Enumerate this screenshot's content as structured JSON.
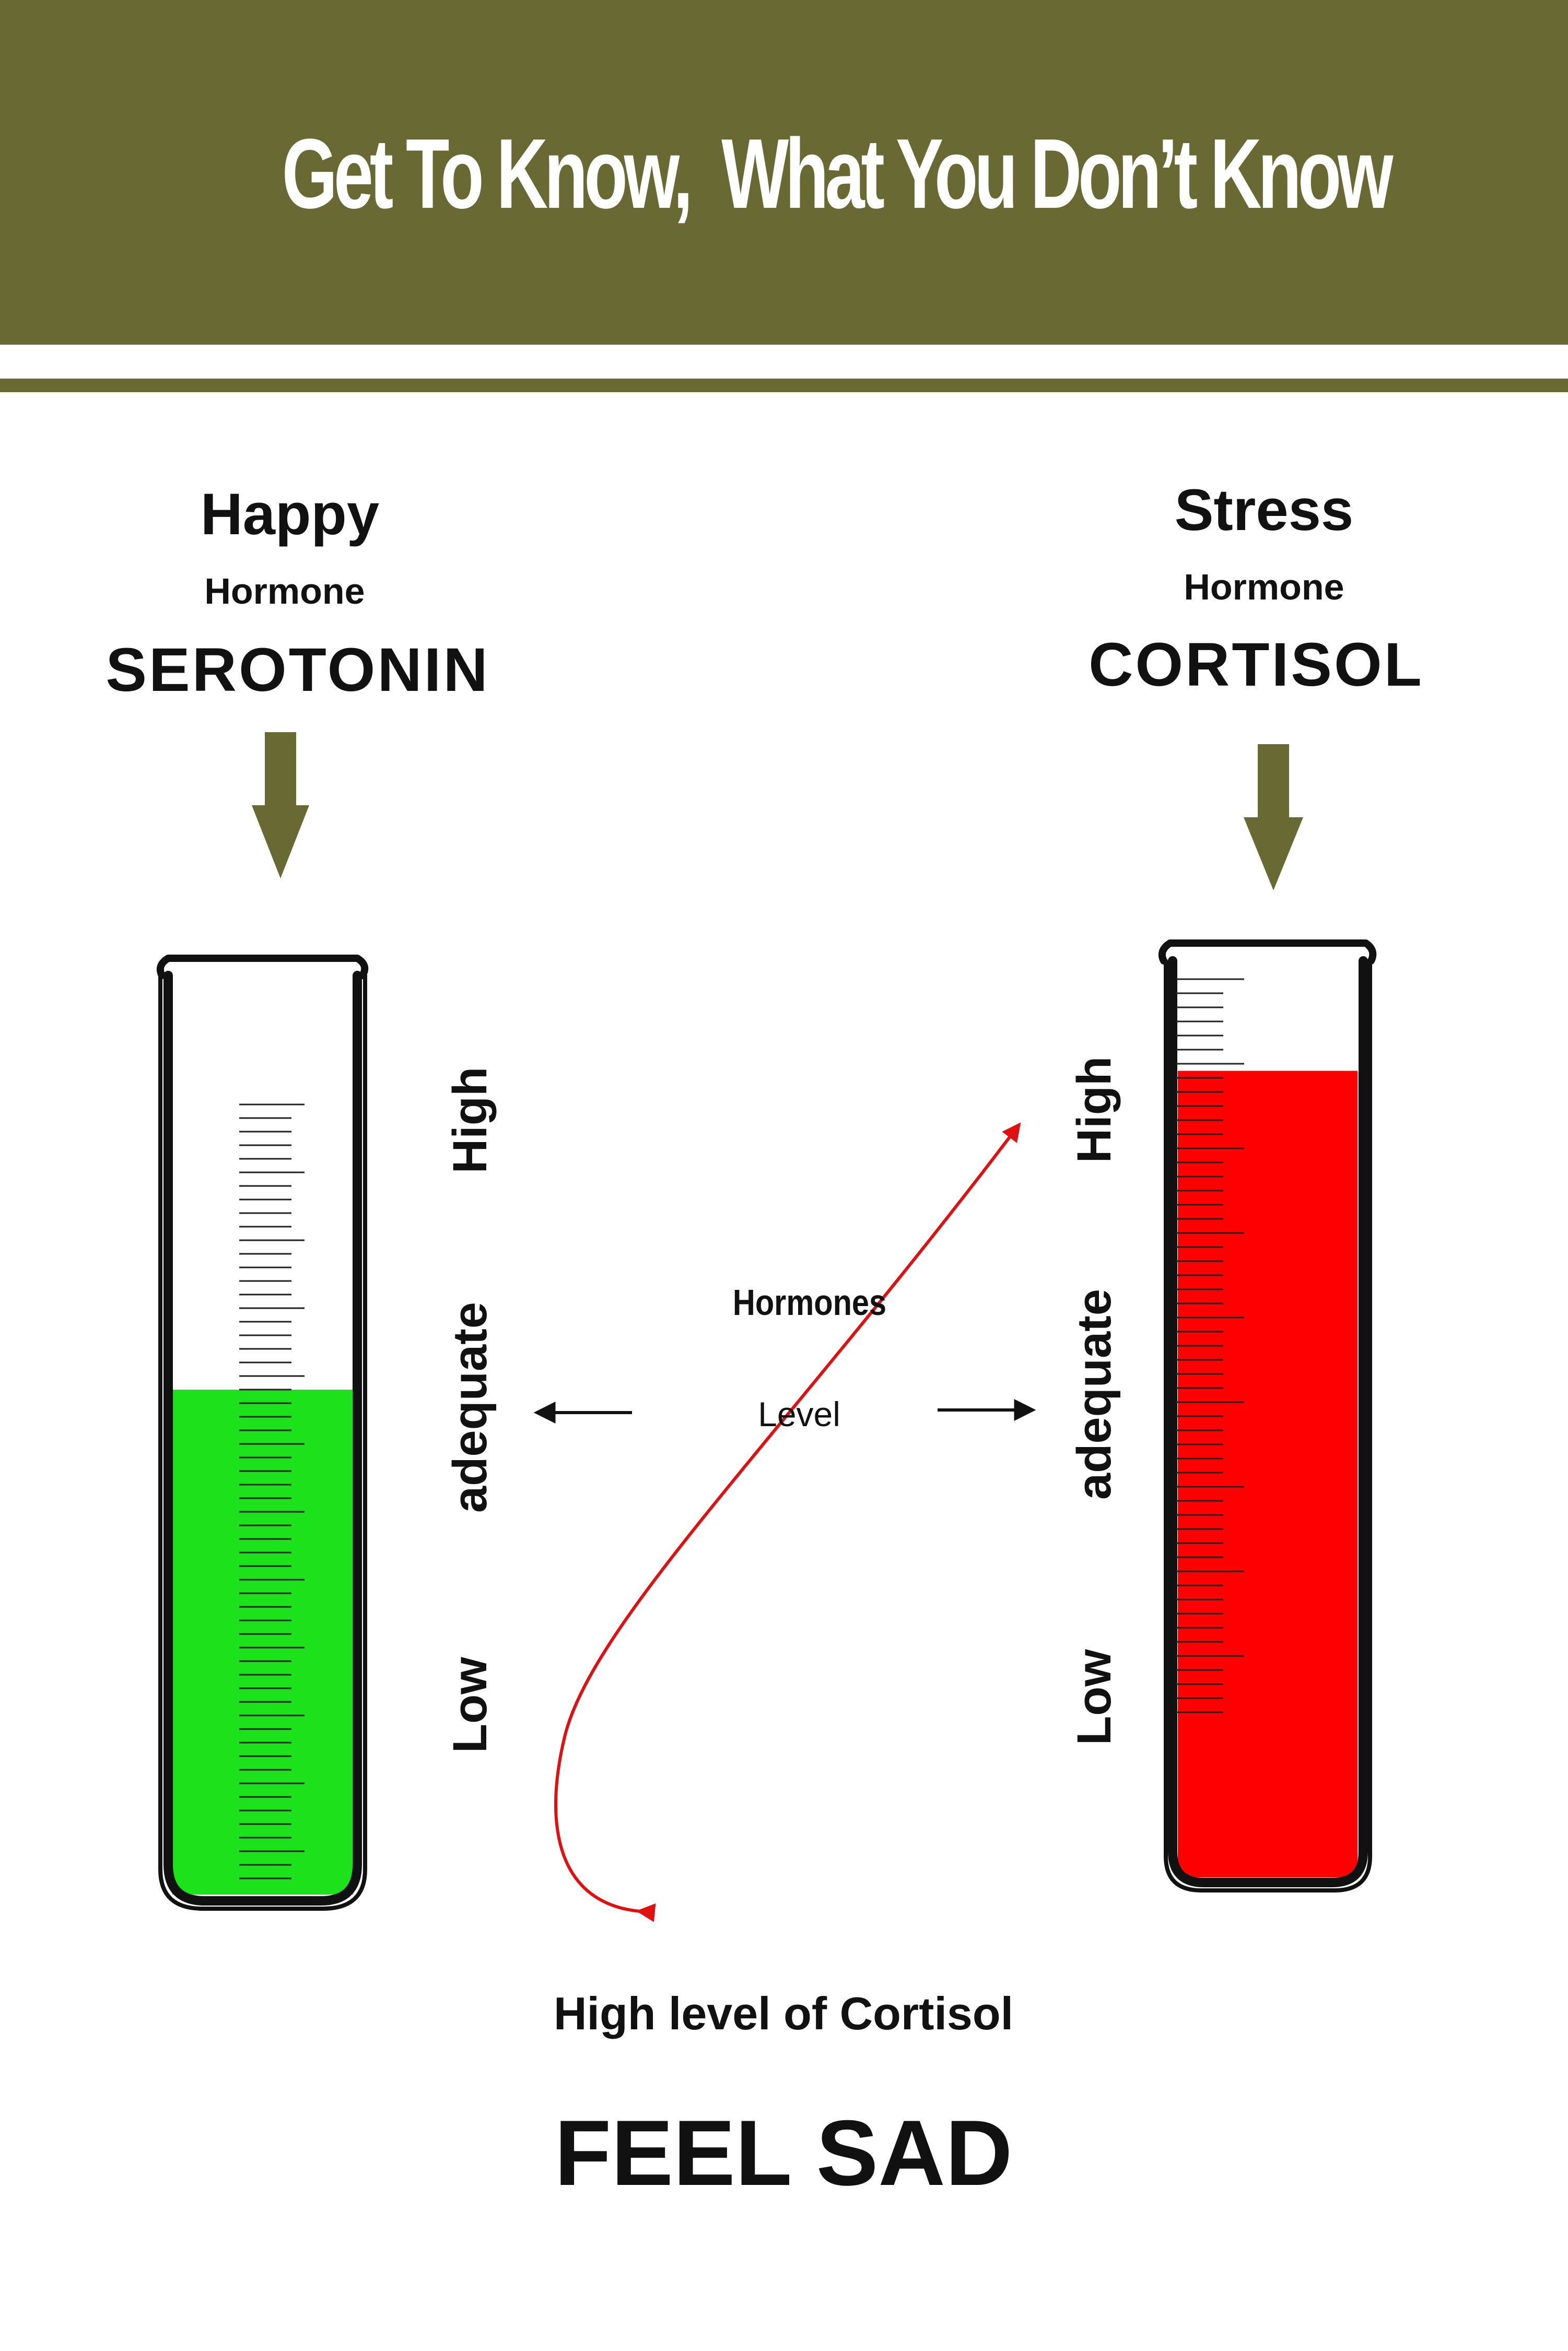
{
  "header": {
    "title": "Get To Know,  What You Don’t Know"
  },
  "left": {
    "mood": "Happy",
    "type": "Hormone",
    "name": "SEROTONIN",
    "fill_color": "#1be21b",
    "level_fraction": 0.55
  },
  "right": {
    "mood": "Stress",
    "type": "Hormone",
    "name": "CORTISOL",
    "fill_color": "#ff0000",
    "level_fraction": 0.88
  },
  "scale": {
    "high": "High",
    "adequate": "adequate",
    "low": "Low"
  },
  "center": {
    "hormones": "Hormones",
    "level": "Level"
  },
  "footer": {
    "caption": "High level of Cortisol",
    "verdict": "FEEL SAD"
  },
  "colors": {
    "banner": "#696934",
    "arrow": "#696934",
    "curve": "#e01010"
  }
}
